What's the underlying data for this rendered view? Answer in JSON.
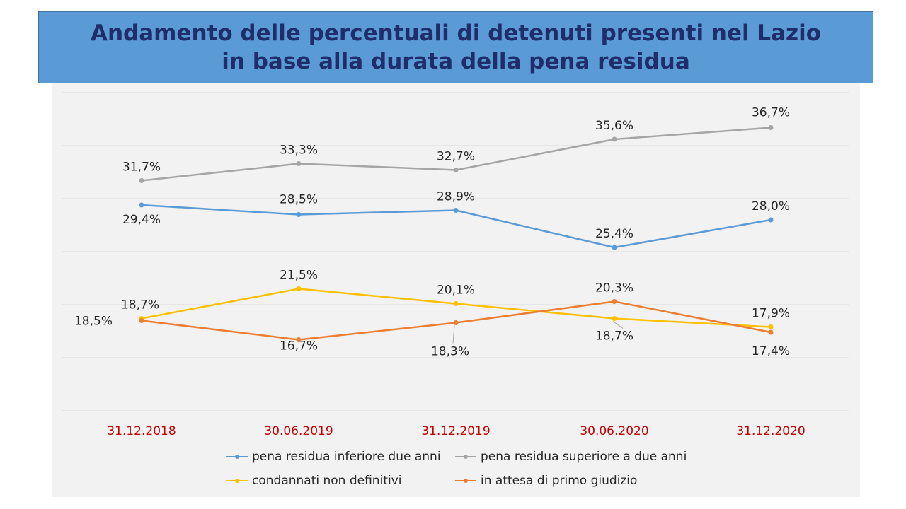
{
  "title": {
    "line1": "Andamento delle percentuali di detenuti presenti nel Lazio",
    "line2": "in base alla durata della pena residua"
  },
  "chart_data": {
    "type": "line",
    "categories": [
      "31.12.2018",
      "30.06.2019",
      "31.12.2019",
      "30.06.2020",
      "31.12.2020"
    ],
    "ylim": [
      10,
      40
    ],
    "grid": true,
    "legend_position": "bottom",
    "category_label_color": "#c00000",
    "series": [
      {
        "name": "pena residua inferiore due anni",
        "color": "#5b9bd5",
        "values": [
          29.4,
          28.5,
          28.9,
          25.4,
          28.0
        ],
        "labels": [
          "29,4%",
          "28,5%",
          "28,9%",
          "25,4%",
          "28,0%"
        ]
      },
      {
        "name": "pena residua superiore a due anni",
        "color": "#a5a5a5",
        "values": [
          31.7,
          33.3,
          32.7,
          35.6,
          36.7
        ],
        "labels": [
          "31,7%",
          "33,3%",
          "32,7%",
          "35,6%",
          "36,7%"
        ]
      },
      {
        "name": "condannati non definitivi",
        "color": "#ffc000",
        "values": [
          18.7,
          21.5,
          20.1,
          18.7,
          17.9
        ],
        "labels": [
          "18,7%",
          "21,5%",
          "20,1%",
          "18,7%",
          "17,9%"
        ]
      },
      {
        "name": "in attesa di primo giudizio",
        "color": "#ed7d31",
        "values": [
          18.5,
          16.7,
          18.3,
          20.3,
          17.4
        ],
        "labels": [
          "18,5%",
          "16,7%",
          "18,3%",
          "20,3%",
          "17,4%"
        ]
      }
    ]
  }
}
